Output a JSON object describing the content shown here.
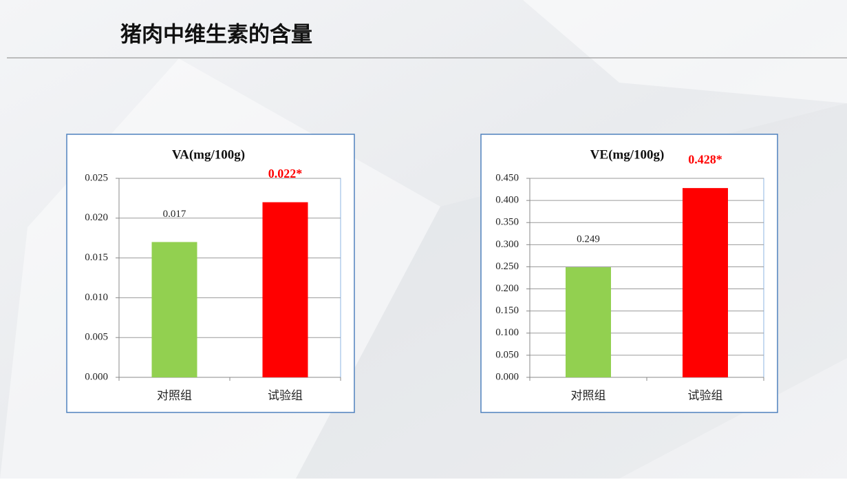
{
  "header": {
    "title": "猪肉中维生素的含量"
  },
  "chart_data": [
    {
      "type": "bar",
      "title": "VA(mg/100g)",
      "categories": [
        "对照组",
        "试验组"
      ],
      "values": [
        0.017,
        0.022
      ],
      "value_labels": [
        "0.017",
        "0.022*"
      ],
      "colors": [
        "#92d050",
        "#ff0000"
      ],
      "value_label_colors": [
        "#222222",
        "#ff0000"
      ],
      "ylim": [
        0,
        0.025
      ],
      "yticks": [
        {
          "value": 0,
          "label": "0.000"
        },
        {
          "value": 0.005,
          "label": "0.005"
        },
        {
          "value": 0.01,
          "label": "0.010"
        },
        {
          "value": 0.015,
          "label": "0.015"
        },
        {
          "value": 0.02,
          "label": "0.020"
        },
        {
          "value": 0.025,
          "label": "0.025"
        }
      ],
      "grid": true
    },
    {
      "type": "bar",
      "title": "VE(mg/100g)",
      "categories": [
        "对照组",
        "试验组"
      ],
      "values": [
        0.249,
        0.428
      ],
      "value_labels": [
        "0.249",
        "0.428*"
      ],
      "colors": [
        "#92d050",
        "#ff0000"
      ],
      "value_label_colors": [
        "#222222",
        "#ff0000"
      ],
      "ylim": [
        0,
        0.45
      ],
      "yticks": [
        {
          "value": 0,
          "label": "0.000"
        },
        {
          "value": 0.05,
          "label": "0.050"
        },
        {
          "value": 0.1,
          "label": "0.100"
        },
        {
          "value": 0.15,
          "label": "0.150"
        },
        {
          "value": 0.2,
          "label": "0.200"
        },
        {
          "value": 0.25,
          "label": "0.250"
        },
        {
          "value": 0.3,
          "label": "0.300"
        },
        {
          "value": 0.35,
          "label": "0.350"
        },
        {
          "value": 0.4,
          "label": "0.400"
        },
        {
          "value": 0.45,
          "label": "0.450"
        }
      ],
      "grid": true
    }
  ]
}
